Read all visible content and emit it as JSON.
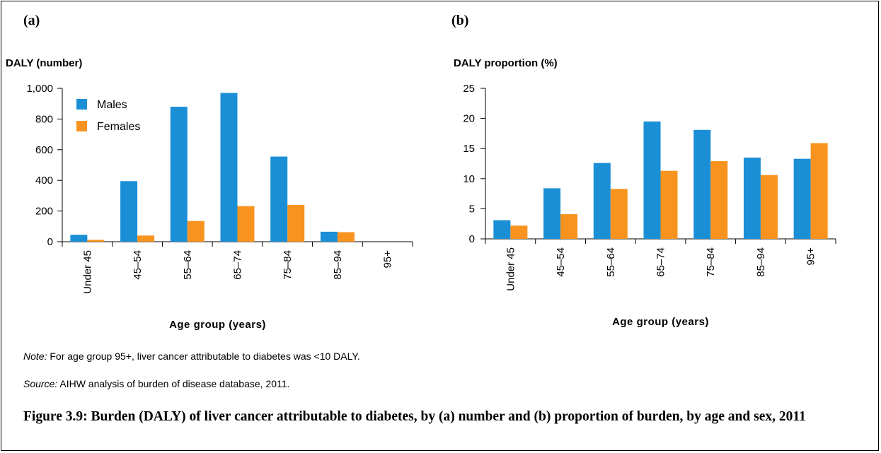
{
  "panel_a_label": "(a)",
  "panel_b_label": "(b)",
  "note": {
    "lead": "Note:",
    "text": " For age group 95+, liver cancer attributable to diabetes was <10 DALY."
  },
  "source": {
    "lead": "Source:",
    "text": " AIHW analysis of burden of disease database, 2011."
  },
  "caption": "Figure 3.9: Burden (DALY) of liver cancer attributable to diabetes, by (a) number and (b) proportion of burden, by age and sex, 2011",
  "colors": {
    "males": "#1a8fd6",
    "females": "#f7931e"
  },
  "chart_data": [
    {
      "type": "bar",
      "panel": "(a)",
      "ylabel": "DALY (number)",
      "xlabel": "Age group (years)",
      "categories": [
        "Under 45",
        "45–54",
        "55–64",
        "65–74",
        "75–84",
        "85–94",
        "95+"
      ],
      "series": [
        {
          "name": "Males",
          "values": [
            45,
            395,
            880,
            970,
            555,
            65,
            0
          ]
        },
        {
          "name": "Females",
          "values": [
            12,
            40,
            135,
            232,
            240,
            62,
            0
          ]
        }
      ],
      "ylim": [
        0,
        1000
      ],
      "yticks": [
        0,
        200,
        400,
        600,
        800,
        1000
      ],
      "ytick_labels": [
        "0",
        "200",
        "400",
        "600",
        "800",
        "1,000"
      ],
      "legend": "top-left",
      "grid": false
    },
    {
      "type": "bar",
      "panel": "(b)",
      "ylabel": "DALY proportion (%)",
      "xlabel": "Age group (years)",
      "categories": [
        "Under 45",
        "45–54",
        "55–64",
        "65–74",
        "75–84",
        "85–94",
        "95+"
      ],
      "series": [
        {
          "name": "Males",
          "values": [
            3.1,
            8.4,
            12.6,
            19.5,
            18.1,
            13.5,
            13.3
          ]
        },
        {
          "name": "Females",
          "values": [
            2.2,
            4.1,
            8.3,
            11.3,
            12.9,
            10.6,
            15.9
          ]
        }
      ],
      "ylim": [
        0,
        25
      ],
      "yticks": [
        0,
        5,
        10,
        15,
        20,
        25
      ],
      "ytick_labels": [
        "0",
        "5",
        "10",
        "15",
        "20",
        "25"
      ],
      "legend": "none",
      "grid": false
    }
  ]
}
